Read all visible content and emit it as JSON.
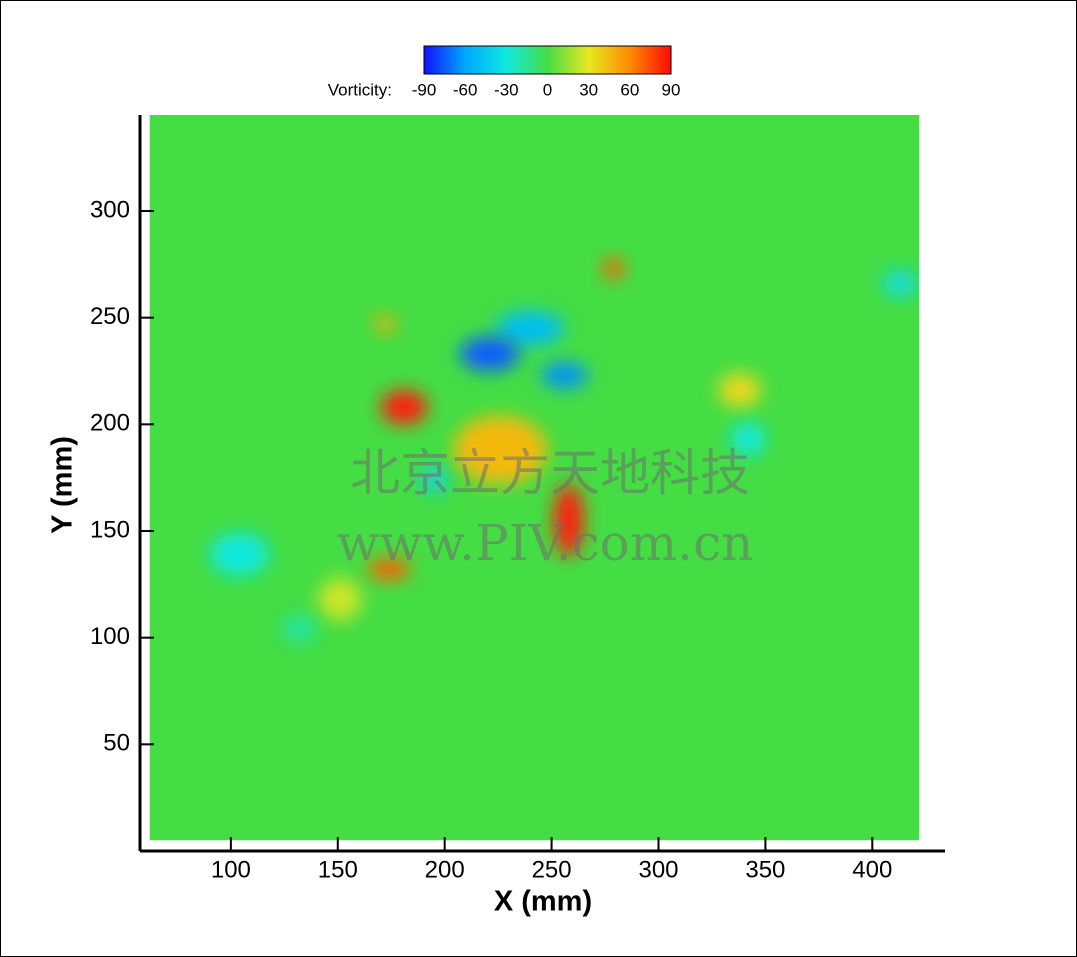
{
  "chart_data": {
    "type": "contour",
    "xlabel": "X (mm)",
    "ylabel": "Y (mm)",
    "xlim": [
      57.5,
      434
    ],
    "ylim": [
      0,
      345
    ],
    "xticks": [
      100,
      150,
      200,
      250,
      300,
      350,
      400
    ],
    "yticks": [
      50,
      100,
      150,
      200,
      250,
      300
    ],
    "colorbar": {
      "label": "Vorticity:",
      "range": [
        -90,
        90
      ],
      "ticks": [
        -90,
        -60,
        -30,
        0,
        30,
        60,
        90
      ],
      "colormap": [
        "#1010ff",
        "#00a8ff",
        "#10e8e0",
        "#44dd44",
        "#e8e820",
        "#ff8a00",
        "#ff0a0a"
      ]
    },
    "field_xlim": [
      62,
      422
    ],
    "field_ylim": [
      5,
      345
    ],
    "background_value": 0,
    "regions": [
      {
        "x": 226,
        "y": 188,
        "rx": 22,
        "ry": 16,
        "value": 45
      },
      {
        "x": 338,
        "y": 216,
        "rx": 10,
        "ry": 8,
        "value": 35
      },
      {
        "x": 151,
        "y": 118,
        "rx": 10,
        "ry": 10,
        "value": 25
      },
      {
        "x": 240,
        "y": 245,
        "rx": 16,
        "ry": 8,
        "value": -50
      },
      {
        "x": 195,
        "y": 174,
        "rx": 6,
        "ry": 6,
        "value": -40
      },
      {
        "x": 104,
        "y": 139,
        "rx": 14,
        "ry": 10,
        "value": -30
      },
      {
        "x": 132,
        "y": 104,
        "rx": 8,
        "ry": 6,
        "value": -20
      },
      {
        "x": 413,
        "y": 266,
        "rx": 8,
        "ry": 6,
        "value": -35
      },
      {
        "x": 342,
        "y": 193,
        "rx": 8,
        "ry": 8,
        "value": -30
      },
      {
        "x": 221,
        "y": 233,
        "rx": 14,
        "ry": 8,
        "value": -75
      },
      {
        "x": 256,
        "y": 223,
        "rx": 11,
        "ry": 6,
        "value": -65
      },
      {
        "x": 181,
        "y": 208,
        "rx": 11,
        "ry": 8,
        "value": 85
      },
      {
        "x": 258,
        "y": 155,
        "rx": 7,
        "ry": 17,
        "value": 85
      },
      {
        "x": 279,
        "y": 273,
        "rx": 5,
        "ry": 5,
        "value": 70
      },
      {
        "x": 172,
        "y": 247,
        "rx": 5,
        "ry": 4,
        "value": 50
      },
      {
        "x": 174,
        "y": 132,
        "rx": 10,
        "ry": 5,
        "value": 70
      }
    ],
    "watermark": [
      "北京立方天地科技",
      "www.PIV.com.cn"
    ]
  }
}
